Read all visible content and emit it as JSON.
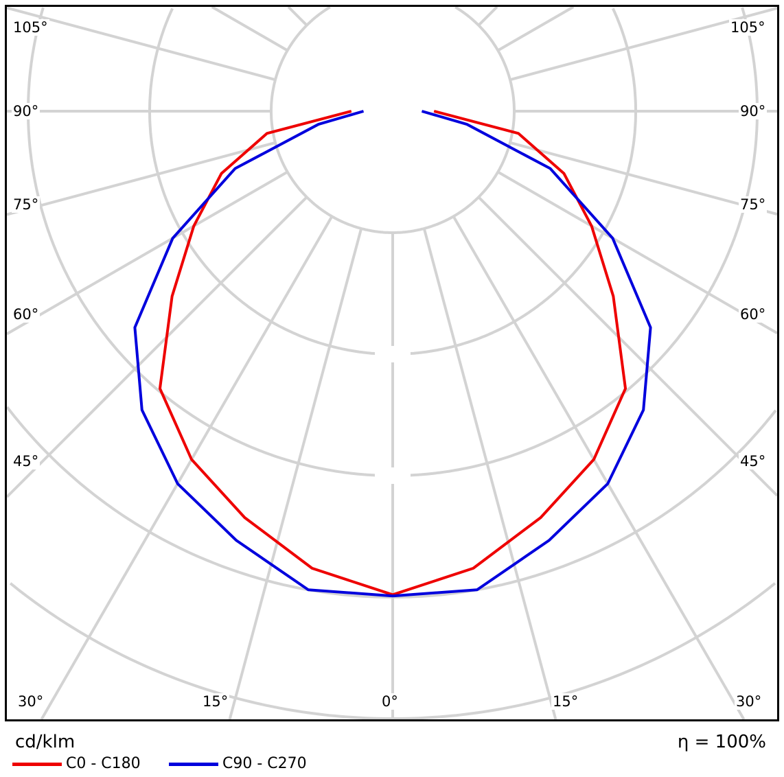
{
  "chart_data": {
    "type": "polar-line",
    "unit_label": "cd/klm",
    "efficiency_label": "η = 100%",
    "angle_labels": {
      "left": [
        "105°",
        "90°",
        "75°",
        "60°",
        "45°"
      ],
      "right": [
        "105°",
        "90°",
        "75°",
        "60°",
        "45°"
      ],
      "bottom": [
        "30°",
        "15°",
        "0°",
        "15°",
        "30°"
      ]
    },
    "angles_deg": [
      0,
      10,
      20,
      30,
      40,
      50,
      60,
      70,
      80,
      90
    ],
    "radial_unit": "grid rings",
    "series": [
      {
        "name": "C0 - C180",
        "color": "#ee0000",
        "values": [
          3.98,
          3.82,
          3.56,
          3.31,
          2.98,
          2.37,
          1.89,
          1.5,
          1.05,
          0.34
        ]
      },
      {
        "name": "C90 - C270",
        "color": "#0000dd",
        "values": [
          3.99,
          4.0,
          3.76,
          3.54,
          3.21,
          2.77,
          2.09,
          1.38,
          0.62,
          0.24
        ]
      }
    ],
    "grid": true,
    "legend": "bottom-left"
  }
}
